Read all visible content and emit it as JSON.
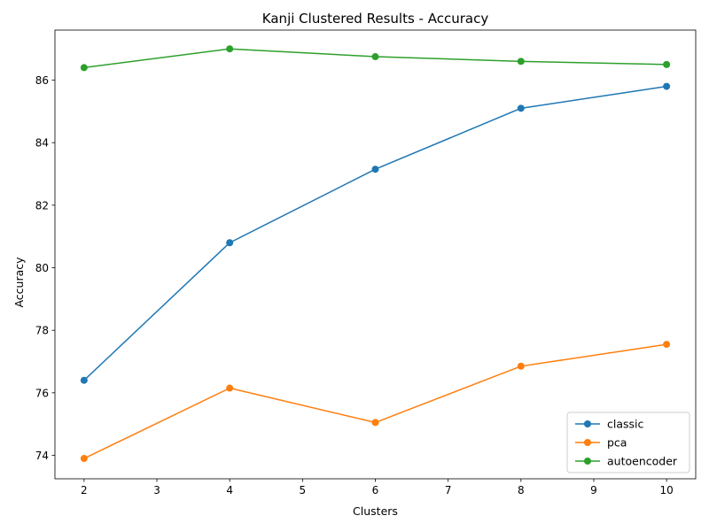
{
  "chart_data": {
    "type": "line",
    "title": "Kanji Clustered Results - Accuracy",
    "xlabel": "Clusters",
    "ylabel": "Accuracy",
    "x": [
      2,
      4,
      6,
      8,
      10
    ],
    "xlim": [
      1.6,
      10.4
    ],
    "ylim": [
      73.25,
      87.6
    ],
    "xticks": [
      2,
      3,
      4,
      5,
      6,
      7,
      8,
      9,
      10
    ],
    "yticks": [
      74,
      76,
      78,
      80,
      82,
      84,
      86
    ],
    "grid": false,
    "legend_position": "lower-right",
    "series": [
      {
        "name": "classic",
        "color": "#1f77b4",
        "values": [
          76.4,
          80.8,
          83.15,
          85.1,
          85.8
        ]
      },
      {
        "name": "pca",
        "color": "#ff7f0e",
        "values": [
          73.9,
          76.15,
          75.05,
          76.85,
          77.55
        ]
      },
      {
        "name": "autoencoder",
        "color": "#2ca02c",
        "values": [
          86.4,
          87.0,
          86.75,
          86.6,
          86.5
        ]
      }
    ]
  }
}
